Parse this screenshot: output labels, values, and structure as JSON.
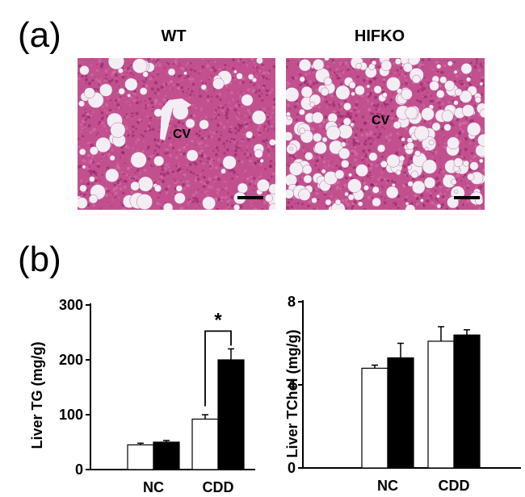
{
  "figure": {
    "panel_a_label": "(a)",
    "panel_b_label": "(b)"
  },
  "micrographs": [
    {
      "title": "WT",
      "label": "CV",
      "scale_bar_color": "#000000"
    },
    {
      "title": "HIFKO",
      "label": "CV",
      "scale_bar_color": "#000000"
    }
  ],
  "colors": {
    "tissue_base": "#c2508f",
    "tissue_dark": "#8e1f66",
    "lipid": "#f3eef4",
    "bar_open_fill": "#ffffff",
    "bar_filled": "#000000"
  },
  "chart_data": [
    {
      "type": "bar",
      "ylabel": "Liver TG (mg/g)",
      "categories": [
        "NC",
        "CDD"
      ],
      "yticks": [
        0,
        100,
        200,
        300
      ],
      "ylim": [
        0,
        300
      ],
      "series": [
        {
          "values": [
            45,
            92
          ],
          "errors": [
            3,
            8
          ],
          "fill": "#ffffff"
        },
        {
          "values": [
            50,
            200
          ],
          "errors": [
            3,
            20
          ],
          "fill": "#000000"
        }
      ],
      "annotations": [
        {
          "text": "*",
          "category": "CDD"
        }
      ]
    },
    {
      "type": "bar",
      "ylabel": "Liver TChol (mg/g)",
      "categories": [
        "NC",
        "CDD"
      ],
      "yticks": [
        0,
        4,
        8
      ],
      "ylim": [
        0,
        8
      ],
      "series": [
        {
          "values": [
            4.8,
            6.1
          ],
          "errors": [
            0.15,
            0.7
          ],
          "fill": "#ffffff"
        },
        {
          "values": [
            5.3,
            6.4
          ],
          "errors": [
            0.7,
            0.25
          ],
          "fill": "#000000"
        }
      ]
    }
  ]
}
